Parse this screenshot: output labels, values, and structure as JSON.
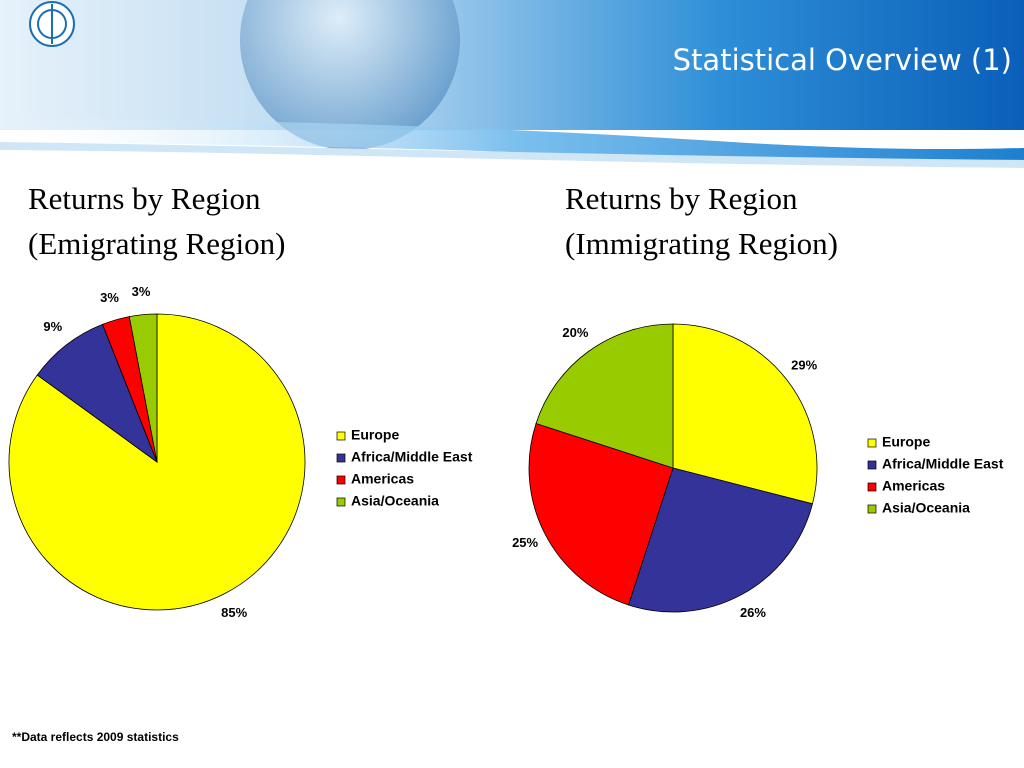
{
  "header": {
    "title": "Statistical Overview (1)"
  },
  "footnote": "**Data reflects 2009 statistics",
  "chart_data": [
    {
      "type": "pie",
      "title": "Returns by Region",
      "subtitle": "(Emigrating Region)",
      "categories": [
        "Europe",
        "Africa/Middle East",
        "Americas",
        "Asia/Oceania"
      ],
      "values": [
        85,
        9,
        3,
        3
      ],
      "value_labels": [
        "85%",
        "9%",
        "3%",
        "3%"
      ],
      "colors": [
        "#ffff00",
        "#333399",
        "#ff0000",
        "#99cc00"
      ],
      "legend": "right"
    },
    {
      "type": "pie",
      "title": "Returns by Region",
      "subtitle": "(Immigrating Region)",
      "categories": [
        "Europe",
        "Africa/Middle East",
        "Americas",
        "Asia/Oceania"
      ],
      "values": [
        29,
        26,
        25,
        20
      ],
      "value_labels": [
        "29%",
        "26%",
        "25%",
        "20%"
      ],
      "colors": [
        "#ffff00",
        "#333399",
        "#ff0000",
        "#99cc00"
      ],
      "legend": "right"
    }
  ]
}
